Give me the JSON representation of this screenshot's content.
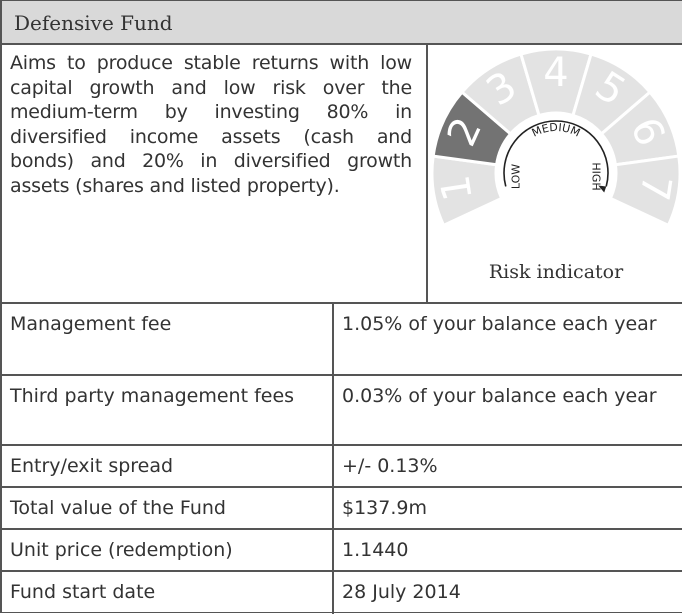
{
  "header": {
    "title": "Defensive Fund"
  },
  "description": "Aims to produce stable returns with low capital growth and low risk over the medium-term by investing 80% in diversified income assets (cash and bonds) and 20% in diversified growth assets (shares and listed property).",
  "risk_indicator": {
    "levels": [
      "1",
      "2",
      "3",
      "4",
      "5",
      "6",
      "7"
    ],
    "selected": "2",
    "scale_labels": [
      "LOW",
      "MEDIUM",
      "HIGH"
    ],
    "caption": "Risk indicator"
  },
  "table": {
    "rows": [
      [
        "Management fee",
        "1.05% of your balance each year"
      ],
      [
        "Third party management fees",
        "0.03% of your balance each year"
      ],
      [
        "Entry/exit spread",
        "+/- 0.13%"
      ],
      [
        "Total value of the Fund",
        "$137.9m"
      ],
      [
        "Unit price (redemption)",
        "1.1440"
      ],
      [
        "Fund start date",
        "28 July 2014"
      ]
    ]
  }
}
